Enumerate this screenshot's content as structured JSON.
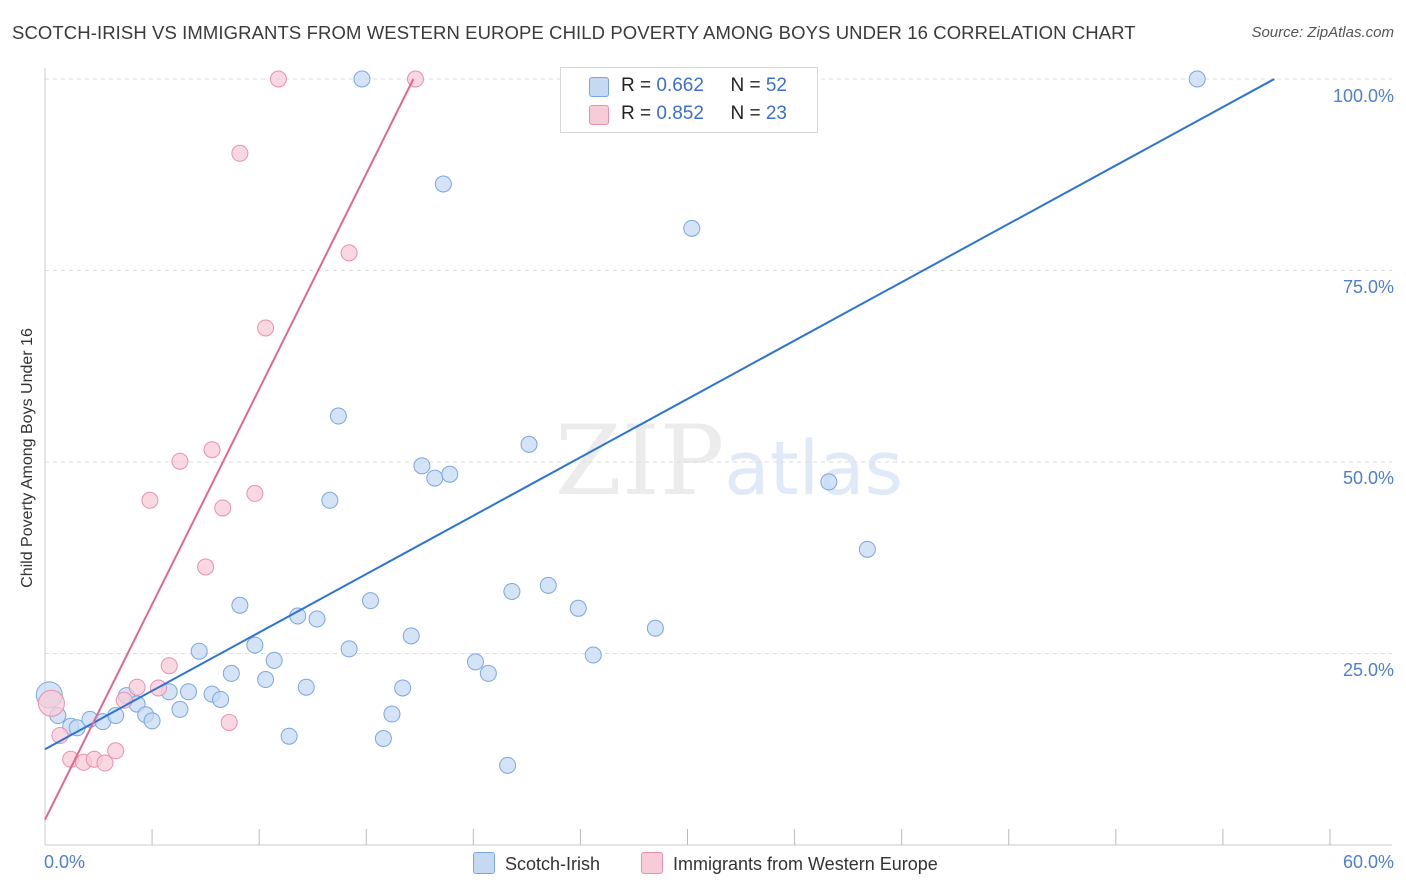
{
  "title": "SCOTCH-IRISH VS IMMIGRANTS FROM WESTERN EUROPE CHILD POVERTY AMONG BOYS UNDER 16 CORRELATION CHART",
  "source": "Source: ZipAtlas.com",
  "watermark": {
    "zip": "ZIP",
    "atlas": "atlas"
  },
  "stats": [
    {
      "r_label": "R = ",
      "r": "0.662",
      "n_label": "N = ",
      "n": "52"
    },
    {
      "r_label": "R = ",
      "r": "0.852",
      "n_label": "N = ",
      "n": "23"
    }
  ],
  "legend": {
    "blue": "Scotch-Irish",
    "pink": "Immigrants from Western Europe"
  },
  "colors": {
    "blue_fill": "#c5d9f3",
    "blue_stroke": "#7aa6e0",
    "blue_line": "#2f74d0",
    "pink_fill": "#f8cbd8",
    "pink_stroke": "#e990ad",
    "pink_line": "#e06890",
    "grid": "#dddddd"
  },
  "chart_data": {
    "type": "scatter",
    "title": "SCOTCH-IRISH VS IMMIGRANTS FROM WESTERN EUROPE CHILD POVERTY AMONG BOYS UNDER 16 CORRELATION CHART",
    "xlabel": "",
    "ylabel": "Child Poverty Among Boys Under 16",
    "xlim": [
      0,
      60
    ],
    "ylim": [
      0,
      100
    ],
    "x_tick_labels": [
      "0.0%",
      "60.0%"
    ],
    "y_ticks": [
      25,
      50,
      75,
      100
    ],
    "y_tick_labels": [
      "25.0%",
      "50.0%",
      "75.0%",
      "100.0%"
    ],
    "grid": true,
    "series": [
      {
        "name": "Scotch-Irish",
        "color": "blue",
        "trend": {
          "x": [
            0,
            57.4
          ],
          "y": [
            12.5,
            100
          ]
        },
        "points": [
          {
            "x": 0.2,
            "y": 19.6
          },
          {
            "x": 0.6,
            "y": 16.9
          },
          {
            "x": 1.2,
            "y": 15.5
          },
          {
            "x": 1.5,
            "y": 15.3
          },
          {
            "x": 2.1,
            "y": 16.4
          },
          {
            "x": 2.7,
            "y": 16.1
          },
          {
            "x": 3.3,
            "y": 16.9
          },
          {
            "x": 3.8,
            "y": 19.5
          },
          {
            "x": 4.3,
            "y": 18.4
          },
          {
            "x": 4.7,
            "y": 17.0
          },
          {
            "x": 5.0,
            "y": 16.2
          },
          {
            "x": 5.8,
            "y": 20.0
          },
          {
            "x": 6.3,
            "y": 17.7
          },
          {
            "x": 6.7,
            "y": 20.0
          },
          {
            "x": 7.2,
            "y": 25.3
          },
          {
            "x": 7.8,
            "y": 19.7
          },
          {
            "x": 8.2,
            "y": 19.0
          },
          {
            "x": 8.7,
            "y": 22.4
          },
          {
            "x": 9.1,
            "y": 31.3
          },
          {
            "x": 9.8,
            "y": 26.1
          },
          {
            "x": 10.3,
            "y": 21.6
          },
          {
            "x": 10.7,
            "y": 24.1
          },
          {
            "x": 11.4,
            "y": 14.2
          },
          {
            "x": 11.8,
            "y": 29.9
          },
          {
            "x": 12.2,
            "y": 20.6
          },
          {
            "x": 12.7,
            "y": 29.5
          },
          {
            "x": 13.3,
            "y": 45.0
          },
          {
            "x": 13.7,
            "y": 56.0
          },
          {
            "x": 14.2,
            "y": 25.6
          },
          {
            "x": 14.8,
            "y": 100.0
          },
          {
            "x": 15.2,
            "y": 31.9
          },
          {
            "x": 15.8,
            "y": 13.9
          },
          {
            "x": 16.2,
            "y": 17.1
          },
          {
            "x": 16.7,
            "y": 20.5
          },
          {
            "x": 17.1,
            "y": 27.3
          },
          {
            "x": 17.6,
            "y": 49.5
          },
          {
            "x": 18.2,
            "y": 47.9
          },
          {
            "x": 18.6,
            "y": 86.3
          },
          {
            "x": 18.9,
            "y": 48.4
          },
          {
            "x": 20.1,
            "y": 23.9
          },
          {
            "x": 20.7,
            "y": 22.4
          },
          {
            "x": 21.6,
            "y": 10.4
          },
          {
            "x": 21.8,
            "y": 33.1
          },
          {
            "x": 22.6,
            "y": 52.3
          },
          {
            "x": 23.5,
            "y": 33.9
          },
          {
            "x": 24.9,
            "y": 30.9
          },
          {
            "x": 28.5,
            "y": 28.3
          },
          {
            "x": 30.2,
            "y": 80.5
          },
          {
            "x": 36.6,
            "y": 47.4
          },
          {
            "x": 38.4,
            "y": 38.6
          },
          {
            "x": 53.8,
            "y": 100.0
          },
          {
            "x": 25.6,
            "y": 24.8
          }
        ]
      },
      {
        "name": "Immigrants from Western Europe",
        "color": "pink",
        "trend": {
          "x": [
            0,
            17.2
          ],
          "y": [
            3.3,
            100
          ]
        },
        "points": [
          {
            "x": 0.3,
            "y": 18.5
          },
          {
            "x": 0.7,
            "y": 14.3
          },
          {
            "x": 1.2,
            "y": 11.2
          },
          {
            "x": 1.8,
            "y": 10.8
          },
          {
            "x": 2.3,
            "y": 11.2
          },
          {
            "x": 2.8,
            "y": 10.7
          },
          {
            "x": 3.3,
            "y": 12.3
          },
          {
            "x": 3.7,
            "y": 18.9
          },
          {
            "x": 4.3,
            "y": 20.6
          },
          {
            "x": 4.9,
            "y": 45.0
          },
          {
            "x": 5.3,
            "y": 20.5
          },
          {
            "x": 5.8,
            "y": 23.4
          },
          {
            "x": 6.3,
            "y": 50.1
          },
          {
            "x": 7.5,
            "y": 36.3
          },
          {
            "x": 7.8,
            "y": 51.6
          },
          {
            "x": 8.3,
            "y": 44.0
          },
          {
            "x": 8.6,
            "y": 16.0
          },
          {
            "x": 9.1,
            "y": 90.3
          },
          {
            "x": 9.8,
            "y": 45.9
          },
          {
            "x": 10.3,
            "y": 67.5
          },
          {
            "x": 10.9,
            "y": 100.0
          },
          {
            "x": 14.2,
            "y": 77.3
          },
          {
            "x": 17.3,
            "y": 100.0
          }
        ]
      }
    ]
  }
}
